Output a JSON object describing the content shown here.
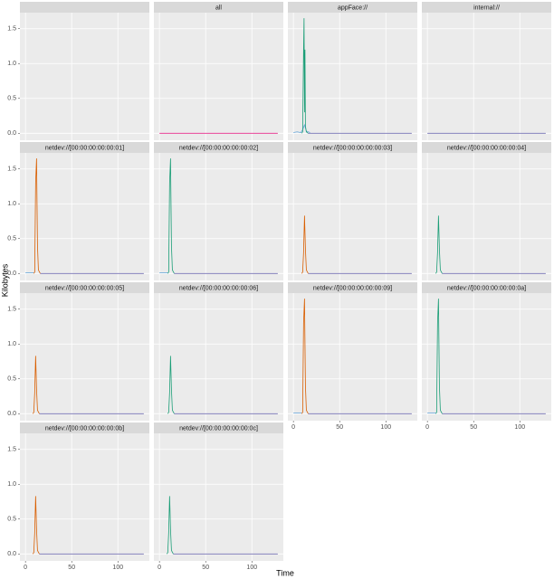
{
  "chart_data": {
    "type": "line",
    "xlabel": "Time",
    "ylabel": "Kilobytes",
    "xlim": [
      -6,
      134
    ],
    "ylim": [
      -0.1,
      1.73
    ],
    "xticks": [
      0,
      50,
      100
    ],
    "yticks": [
      0.0,
      0.5,
      1.0,
      1.5
    ],
    "ytick_labels": [
      "0.0",
      "0.5",
      "1.0",
      "1.5"
    ],
    "grid": true,
    "facets": [
      {
        "title": null,
        "series": []
      },
      {
        "title": "all",
        "series": [
          {
            "color": "#E7298A",
            "x": [
              0,
              128
            ],
            "values": [
              0,
              0
            ]
          }
        ]
      },
      {
        "title": "appFace://",
        "series": [
          {
            "color": "#66A6D9",
            "x": [
              0,
              4,
              8,
              10,
              12,
              14,
              18
            ],
            "values": [
              0.01,
              0.02,
              0.01,
              0.05,
              0.12,
              0.03,
              0.01
            ]
          },
          {
            "color": "#1B9E77",
            "x": [
              9,
              10,
              11,
              11.5,
              12,
              12.5,
              13,
              14,
              16
            ],
            "values": [
              0,
              0.02,
              1.2,
              1.65,
              0.3,
              1.2,
              0.1,
              0.02,
              0
            ]
          },
          {
            "color": "#7570B3",
            "x": [
              16,
              128
            ],
            "values": [
              0,
              0
            ]
          }
        ]
      },
      {
        "title": "internal://",
        "series": [
          {
            "color": "#7570B3",
            "x": [
              0,
              128
            ],
            "values": [
              0,
              0
            ]
          }
        ]
      },
      {
        "title": "netdev://[00:00:00:00:00:01]",
        "series": [
          {
            "color": "#66A6D9",
            "x": [
              0,
              9
            ],
            "values": [
              0.01,
              0.01
            ]
          },
          {
            "color": "#D95F02",
            "x": [
              9,
              10,
              11,
              12,
              13,
              14,
              16
            ],
            "values": [
              0,
              0.02,
              1.3,
              1.65,
              0.4,
              0.05,
              0
            ]
          },
          {
            "color": "#7570B3",
            "x": [
              16,
              128
            ],
            "values": [
              0,
              0
            ]
          }
        ]
      },
      {
        "title": "netdev://[00:00:00:00:00:02]",
        "series": [
          {
            "color": "#66A6D9",
            "x": [
              0,
              9
            ],
            "values": [
              0.01,
              0.01
            ]
          },
          {
            "color": "#1B9E77",
            "x": [
              9,
              10,
              11,
              12,
              13,
              14,
              16
            ],
            "values": [
              0,
              0.02,
              1.3,
              1.65,
              0.4,
              0.05,
              0
            ]
          },
          {
            "color": "#7570B3",
            "x": [
              16,
              128
            ],
            "values": [
              0,
              0
            ]
          }
        ]
      },
      {
        "title": "netdev://[00:00:00:00:00:03]",
        "series": [
          {
            "color": "#D95F02",
            "x": [
              9,
              10,
              11,
              12,
              13,
              14,
              16
            ],
            "values": [
              0,
              0.02,
              0.3,
              0.83,
              0.35,
              0.05,
              0
            ]
          },
          {
            "color": "#7570B3",
            "x": [
              16,
              128
            ],
            "values": [
              0,
              0
            ]
          }
        ]
      },
      {
        "title": "netdev://[00:00:00:00:00:04]",
        "series": [
          {
            "color": "#1B9E77",
            "x": [
              9,
              10,
              11,
              12,
              13,
              14,
              16
            ],
            "values": [
              0,
              0.02,
              0.3,
              0.83,
              0.35,
              0.05,
              0
            ]
          },
          {
            "color": "#7570B3",
            "x": [
              16,
              128
            ],
            "values": [
              0,
              0
            ]
          }
        ]
      },
      {
        "title": "netdev://[00:00:00:00:00:05]",
        "series": [
          {
            "color": "#D95F02",
            "x": [
              8,
              9,
              10,
              11,
              12,
              13,
              15
            ],
            "values": [
              0,
              0.02,
              0.3,
              0.83,
              0.35,
              0.05,
              0
            ]
          },
          {
            "color": "#7570B3",
            "x": [
              15,
              128
            ],
            "values": [
              0,
              0
            ]
          }
        ]
      },
      {
        "title": "netdev://[00:00:00:00:00:06]",
        "series": [
          {
            "color": "#1B9E77",
            "x": [
              9,
              10,
              11,
              12,
              13,
              14,
              16
            ],
            "values": [
              0,
              0.02,
              0.3,
              0.83,
              0.35,
              0.05,
              0
            ]
          },
          {
            "color": "#7570B3",
            "x": [
              16,
              128
            ],
            "values": [
              0,
              0
            ]
          }
        ]
      },
      {
        "title": "netdev://[00:00:00:00:00:09]",
        "series": [
          {
            "color": "#66A6D9",
            "x": [
              0,
              9
            ],
            "values": [
              0.01,
              0.01
            ]
          },
          {
            "color": "#D95F02",
            "x": [
              9,
              10,
              11,
              12,
              13,
              14,
              16
            ],
            "values": [
              0,
              0.02,
              1.3,
              1.65,
              0.4,
              0.05,
              0
            ]
          },
          {
            "color": "#7570B3",
            "x": [
              16,
              128
            ],
            "values": [
              0,
              0
            ]
          }
        ]
      },
      {
        "title": "netdev://[00:00:00:00:00:0a]",
        "series": [
          {
            "color": "#66A6D9",
            "x": [
              0,
              9
            ],
            "values": [
              0.01,
              0.01
            ]
          },
          {
            "color": "#1B9E77",
            "x": [
              9,
              10,
              11,
              12,
              13,
              14,
              16
            ],
            "values": [
              0,
              0.02,
              1.3,
              1.65,
              0.4,
              0.05,
              0
            ]
          },
          {
            "color": "#7570B3",
            "x": [
              16,
              128
            ],
            "values": [
              0,
              0
            ]
          }
        ]
      },
      {
        "title": "netdev://[00:00:00:00:00:0b]",
        "series": [
          {
            "color": "#D95F02",
            "x": [
              8,
              9,
              10,
              11,
              12,
              13,
              15
            ],
            "values": [
              0,
              0.02,
              0.3,
              0.83,
              0.35,
              0.05,
              0
            ]
          },
          {
            "color": "#7570B3",
            "x": [
              15,
              128
            ],
            "values": [
              0,
              0
            ]
          }
        ]
      },
      {
        "title": "netdev://[00:00:00:00:00:0c]",
        "series": [
          {
            "color": "#1B9E77",
            "x": [
              8,
              9,
              10,
              11,
              12,
              13,
              15
            ],
            "values": [
              0,
              0.02,
              0.3,
              0.83,
              0.35,
              0.05,
              0
            ]
          },
          {
            "color": "#7570B3",
            "x": [
              15,
              128
            ],
            "values": [
              0,
              0
            ]
          }
        ]
      }
    ]
  }
}
